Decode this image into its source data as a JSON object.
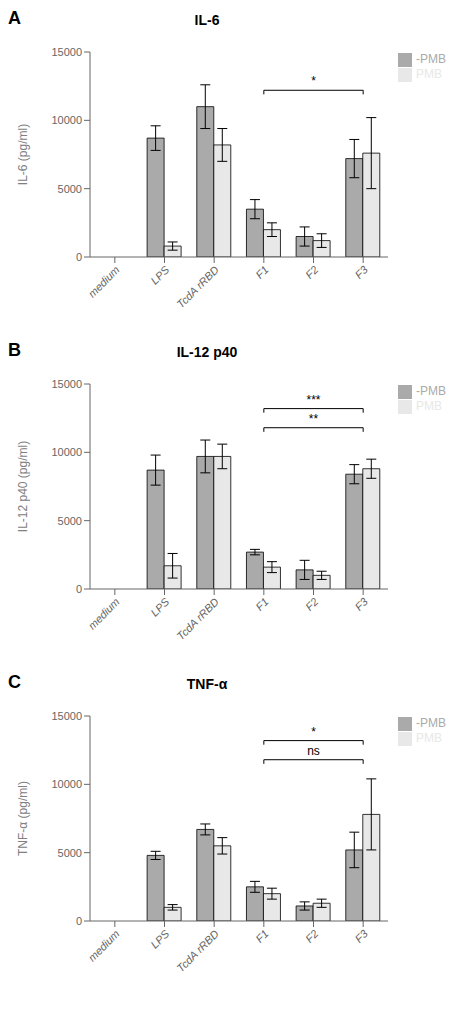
{
  "chart_data": [
    {
      "type": "bar",
      "panel_label": "A",
      "title": "IL-6",
      "ylabel": "IL-6 (pg/ml)",
      "categories": [
        "medium",
        "LPS",
        "TcdA rRBD",
        "F1",
        "F2",
        "F3"
      ],
      "series": [
        {
          "name": "-PMB",
          "color": "#aaaaaa",
          "values": [
            0,
            8700,
            11000,
            3500,
            1500,
            7200
          ],
          "errors": [
            0,
            900,
            1600,
            700,
            700,
            1400
          ]
        },
        {
          "name": "PMB",
          "color": "#e8e8e8",
          "values": [
            0,
            800,
            8200,
            2000,
            1200,
            7600
          ],
          "errors": [
            0,
            300,
            1200,
            500,
            500,
            2600
          ]
        }
      ],
      "ylim": [
        0,
        15000
      ],
      "yticks": [
        0,
        5000,
        10000,
        15000
      ],
      "grid": false,
      "legend": "right",
      "annotations": [
        {
          "text": "*",
          "from": "F1",
          "to": "F3",
          "y": 12200
        }
      ]
    },
    {
      "type": "bar",
      "panel_label": "B",
      "title": "IL-12 p40",
      "ylabel": "IL-12 p40 (pg/ml)",
      "categories": [
        "medium",
        "LPS",
        "TcdA rRBD",
        "F1",
        "F2",
        "F3"
      ],
      "series": [
        {
          "name": "-PMB",
          "color": "#aaaaaa",
          "values": [
            0,
            8700,
            9700,
            2700,
            1400,
            8400
          ],
          "errors": [
            0,
            1100,
            1200,
            200,
            700,
            700
          ]
        },
        {
          "name": "PMB",
          "color": "#e8e8e8",
          "values": [
            0,
            1700,
            9700,
            1600,
            1000,
            8800
          ],
          "errors": [
            0,
            900,
            900,
            400,
            300,
            700
          ]
        }
      ],
      "ylim": [
        0,
        15000
      ],
      "yticks": [
        0,
        5000,
        10000,
        15000
      ],
      "grid": false,
      "legend": "right",
      "annotations": [
        {
          "text": "***",
          "from": "F1",
          "to": "F3",
          "y": 13200
        },
        {
          "text": "**",
          "from": "F1",
          "to": "F3",
          "y": 11800
        }
      ]
    },
    {
      "type": "bar",
      "panel_label": "C",
      "title": "TNF-α",
      "ylabel": "TNF-α (pg/ml)",
      "categories": [
        "medium",
        "LPS",
        "TcdA rRBD",
        "F1",
        "F2",
        "F3"
      ],
      "series": [
        {
          "name": "-PMB",
          "color": "#aaaaaa",
          "values": [
            0,
            4800,
            6700,
            2500,
            1100,
            5200
          ],
          "errors": [
            0,
            300,
            400,
            400,
            300,
            1300
          ]
        },
        {
          "name": "PMB",
          "color": "#e8e8e8",
          "values": [
            0,
            1000,
            5500,
            2000,
            1300,
            7800
          ],
          "errors": [
            0,
            200,
            600,
            400,
            300,
            2600
          ]
        }
      ],
      "ylim": [
        0,
        15000
      ],
      "yticks": [
        0,
        5000,
        10000,
        15000
      ],
      "grid": false,
      "legend": "right",
      "annotations": [
        {
          "text": "*",
          "from": "F1",
          "to": "F3",
          "y": 13200
        },
        {
          "text": "ns",
          "from": "F1",
          "to": "F3",
          "y": 11800
        }
      ]
    }
  ]
}
